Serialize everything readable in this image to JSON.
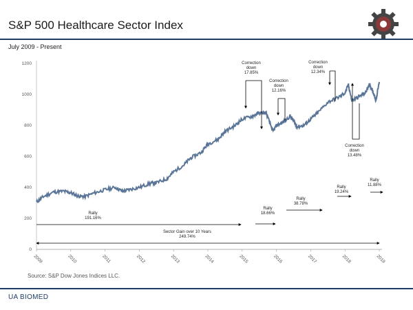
{
  "header": {
    "title": "S&P 500 Healthcare Sector Index",
    "subtitle": "July 2009 - Present",
    "logo": "gear-icon"
  },
  "footer": {
    "source": "Source: S&P Dow Jones Indices LLC.",
    "brand": "UA BIOMED"
  },
  "colors": {
    "line": "#5a7597",
    "rule": "#1f3b66",
    "axis": "#888888"
  },
  "chart_data": {
    "type": "line",
    "title": "S&P 500 Healthcare Sector Index",
    "subtitle": "July 2009 - Present",
    "x_ticks": [
      "2009",
      "2010",
      "2011",
      "2012",
      "2013",
      "2014",
      "2015",
      "2016",
      "2017",
      "2018",
      "2019"
    ],
    "xlim": [
      2009,
      2019
    ],
    "ylim": [
      0,
      1200
    ],
    "y_ticks": [
      0,
      200,
      400,
      600,
      800,
      1000,
      1200
    ],
    "series": [
      {
        "x": [
          2009.0,
          2009.2,
          2009.5,
          2009.8,
          2010.0,
          2010.2,
          2010.4,
          2010.7,
          2011.0,
          2011.3,
          2011.5,
          2011.7,
          2012.0,
          2012.3,
          2012.5,
          2012.8,
          2013.0,
          2013.3,
          2013.5,
          2013.8,
          2014.0,
          2014.3,
          2014.5,
          2014.8,
          2015.0,
          2015.3,
          2015.5,
          2015.7,
          2015.9,
          2016.0,
          2016.2,
          2016.4,
          2016.5,
          2016.6,
          2016.8,
          2017.0,
          2017.2,
          2017.5,
          2017.8,
          2018.0,
          2018.1,
          2018.2,
          2018.4,
          2018.6,
          2018.7,
          2018.8,
          2018.9,
          2019.0
        ],
        "y": [
          305,
          340,
          370,
          375,
          365,
          345,
          340,
          365,
          385,
          400,
          375,
          385,
          400,
          425,
          430,
          455,
          500,
          545,
          590,
          625,
          680,
          710,
          760,
          800,
          840,
          860,
          880,
          880,
          760,
          800,
          820,
          860,
          830,
          790,
          800,
          840,
          880,
          950,
          980,
          1010,
          1060,
          960,
          985,
          1010,
          1065,
          1030,
          960,
          1080
        ]
      }
    ],
    "annotations": [
      {
        "label": "Correction down 17.85%",
        "lines": [
          "Correction",
          "down",
          "17.85%"
        ]
      },
      {
        "label": "Correction down 12.16%",
        "lines": [
          "Correction",
          "down",
          "12.16%"
        ]
      },
      {
        "label": "Correction down 12.34%",
        "lines": [
          "Correction",
          "down",
          "12.34%"
        ]
      },
      {
        "label": "Correction down 13.48%",
        "lines": [
          "Correction",
          "down",
          "13.48%"
        ]
      },
      {
        "label": "Rally 191.16%",
        "lines": [
          "Rally",
          "191.16%"
        ]
      },
      {
        "label": "Rally 18.66%",
        "lines": [
          "Rally",
          "18.66%"
        ]
      },
      {
        "label": "Rally 38.78%",
        "lines": [
          "Rally",
          "38.78%"
        ]
      },
      {
        "label": "Rally 19.24%",
        "lines": [
          "Rally",
          "19.24%"
        ]
      },
      {
        "label": "Rally 11.88%",
        "lines": [
          "Rally",
          "11.88%"
        ]
      },
      {
        "label": "Sector Gain over 10 Years 249.74%",
        "lines": [
          "Sector Gain  over 10 Years",
          "249.74%"
        ]
      }
    ]
  }
}
